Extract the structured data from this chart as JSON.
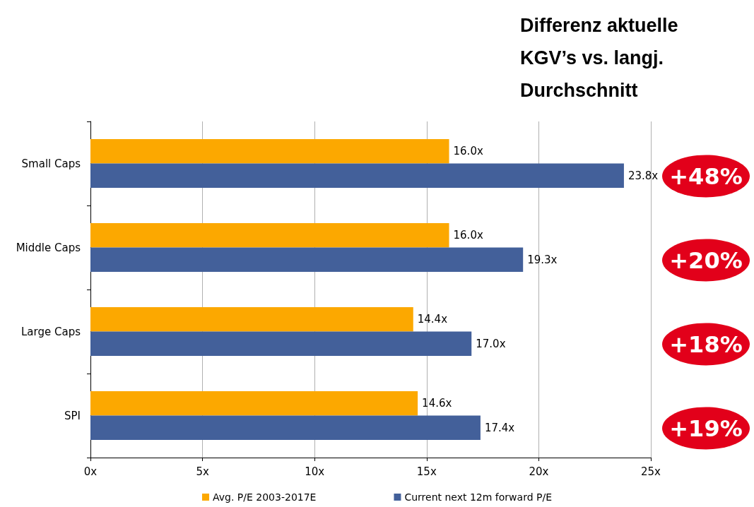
{
  "chart_data": {
    "type": "bar",
    "orientation": "horizontal",
    "title": "Differenz aktuelle KGV’s vs. langj. Durchschnitt",
    "categories": [
      "Small Caps",
      "Middle Caps",
      "Large Caps",
      "SPI"
    ],
    "series": [
      {
        "name": "Avg. P/E 2003-2017E",
        "color": "#fca800",
        "values": [
          16.0,
          16.0,
          14.4,
          14.6
        ],
        "value_labels": [
          "16.0x",
          "16.0x",
          "14.4x",
          "14.6x"
        ]
      },
      {
        "name": "Current next 12m forward P/E",
        "color": "#43609a",
        "values": [
          23.8,
          19.3,
          17.0,
          17.4
        ],
        "value_labels": [
          "23.8x",
          "19.3x",
          "17.0x",
          "17.4x"
        ]
      }
    ],
    "xlim": [
      0,
      25
    ],
    "xticks": [
      {
        "value": 0,
        "label": "0x"
      },
      {
        "value": 5,
        "label": "5x"
      },
      {
        "value": 10,
        "label": "10x"
      },
      {
        "value": 15,
        "label": "15x"
      },
      {
        "value": 20,
        "label": "20x"
      },
      {
        "value": 25,
        "label": "25x"
      }
    ],
    "grid": "x",
    "legend": "bottom",
    "annotations": [
      "+48%",
      "+20%",
      "+18%",
      "+19%"
    ]
  }
}
